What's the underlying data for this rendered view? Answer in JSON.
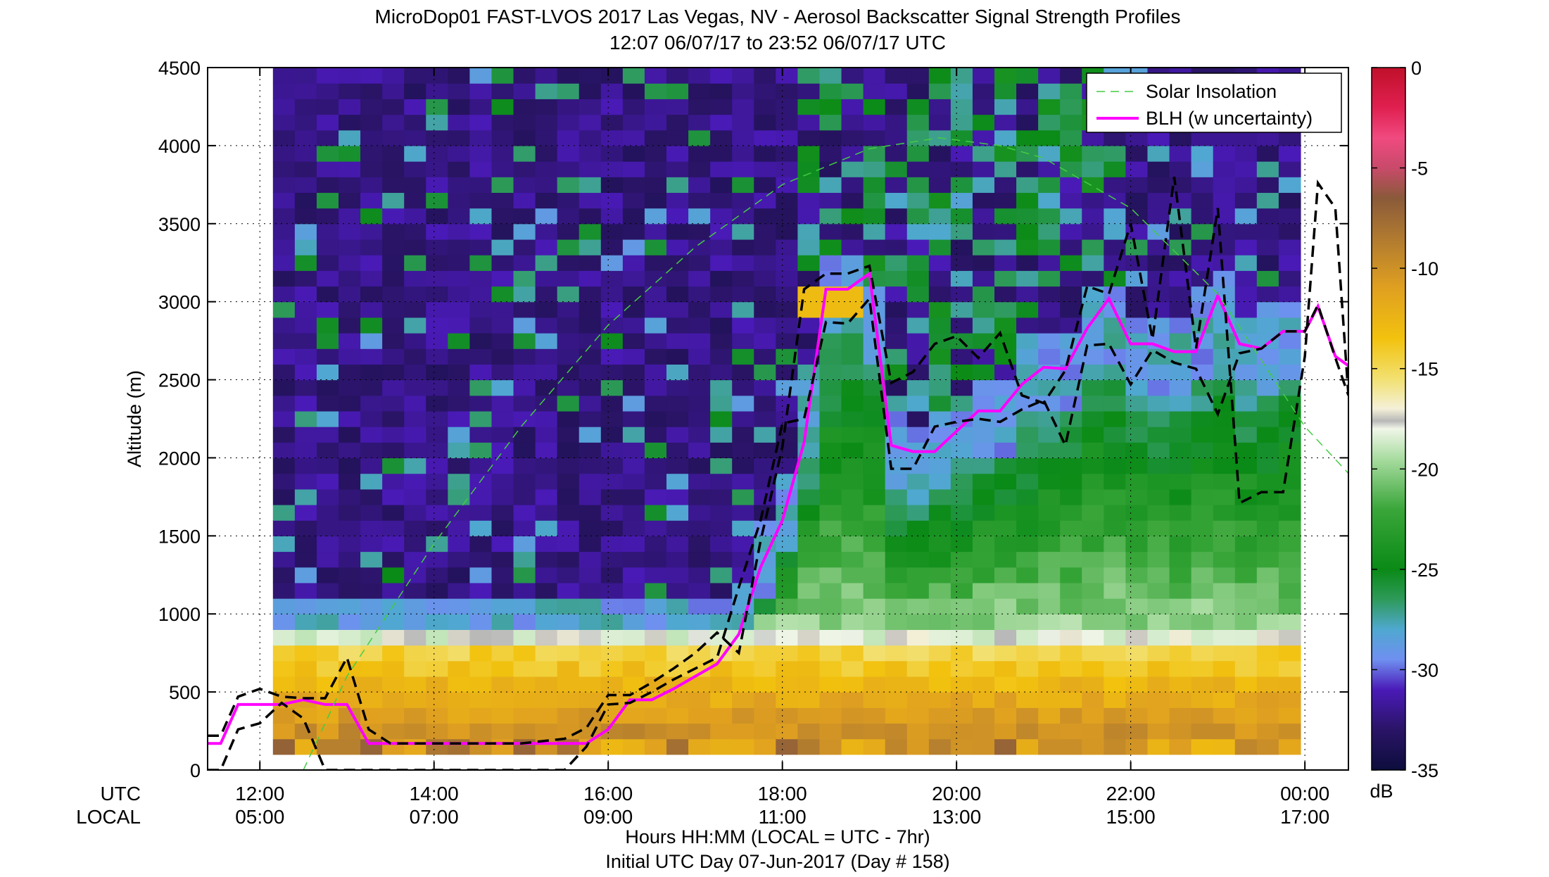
{
  "chart_data": {
    "type": "heatmap",
    "title_line1": "MicroDop01 FAST-LVOS 2017 Las Vegas, NV - Aerosol Backscatter Signal Strength Profiles",
    "title_line2": "12:07 06/07/17 to 23:52 06/07/17  UTC",
    "ylabel": "Altitude (m)",
    "xlabel_line1": "Hours HH:MM  (LOCAL = UTC - 7hr)",
    "xlabel_line2": "Initial UTC Day 07-Jun-2017 (Day # 158)",
    "row_label_utc": "UTC",
    "row_label_local": "LOCAL",
    "xlim_hours": [
      11.4,
      24.5
    ],
    "ylim": [
      0,
      4500
    ],
    "y_ticks": [
      "0",
      "500",
      "1000",
      "1500",
      "2000",
      "2500",
      "3000",
      "3500",
      "4000",
      "4500"
    ],
    "y_tick_values": [
      0,
      500,
      1000,
      1500,
      2000,
      2500,
      3000,
      3500,
      4000,
      4500
    ],
    "x_tick_values": [
      12,
      14,
      16,
      18,
      20,
      22,
      24
    ],
    "x_ticks_utc": [
      "12:00",
      "14:00",
      "16:00",
      "18:00",
      "20:00",
      "22:00",
      "00:00"
    ],
    "x_ticks_local": [
      "05:00",
      "07:00",
      "09:00",
      "11:00",
      "13:00",
      "15:00",
      "17:00"
    ],
    "grid": true,
    "colorbar": {
      "range": [
        -35,
        0
      ],
      "ticks": [
        "0",
        "-5",
        "-10",
        "-15",
        "-20",
        "-25",
        "-30",
        "-35"
      ],
      "tick_values": [
        0,
        -5,
        -10,
        -15,
        -20,
        -25,
        -30,
        -35
      ],
      "unit": "dB",
      "stops": [
        [
          -35,
          "#0d0d3d"
        ],
        [
          -33,
          "#2a1466"
        ],
        [
          -31,
          "#4a1ab8"
        ],
        [
          -29.5,
          "#6f8ff0"
        ],
        [
          -28,
          "#4fa8d0"
        ],
        [
          -26.5,
          "#2e9a5a"
        ],
        [
          -25,
          "#0a8a16"
        ],
        [
          -22,
          "#3aa63a"
        ],
        [
          -19.5,
          "#a8dca0"
        ],
        [
          -18,
          "#f0f6e8"
        ],
        [
          -17.6,
          "#b8b8b8"
        ],
        [
          -17,
          "#f4f0d8"
        ],
        [
          -15.5,
          "#f2e070"
        ],
        [
          -13.5,
          "#f2c20e"
        ],
        [
          -11,
          "#e0a020"
        ],
        [
          -8.5,
          "#b07a30"
        ],
        [
          -6.5,
          "#8a5a3a"
        ],
        [
          -5,
          "#c84a6a"
        ],
        [
          -3.5,
          "#f04a80"
        ],
        [
          -2,
          "#e02050"
        ],
        [
          0,
          "#c0102a"
        ]
      ]
    },
    "heatmap_x_range_hours": [
      12.15,
      23.95
    ],
    "heatmap_y_range": [
      100,
      4500
    ],
    "legend": {
      "position": "top-right",
      "entries": [
        {
          "label": "Solar Insolation",
          "color": "#44cc44",
          "style": "dashed"
        },
        {
          "label": "BLH (w uncertainty)",
          "color": "#ff00ff",
          "style": "solid"
        }
      ]
    },
    "series": [
      {
        "name": "BLH (w uncertainty)",
        "color": "#ff00ff",
        "x": [
          11.4,
          11.55,
          11.75,
          12.0,
          12.25,
          12.5,
          12.75,
          13.0,
          13.25,
          13.5,
          14.0,
          15.0,
          15.5,
          15.75,
          16.0,
          16.25,
          16.5,
          16.75,
          17.0,
          17.25,
          17.5,
          17.75,
          18.0,
          18.25,
          18.5,
          18.75,
          19.0,
          19.25,
          19.5,
          19.75,
          20.0,
          20.25,
          20.5,
          20.75,
          21.0,
          21.25,
          21.5,
          21.75,
          22.0,
          22.25,
          22.5,
          22.75,
          23.0,
          23.25,
          23.5,
          23.75,
          24.0,
          24.15,
          24.35,
          24.5
        ],
        "y": [
          170,
          170,
          420,
          420,
          420,
          450,
          420,
          420,
          170,
          170,
          170,
          170,
          170,
          170,
          260,
          450,
          450,
          520,
          600,
          680,
          870,
          1300,
          1600,
          2100,
          3080,
          3080,
          3180,
          2080,
          2040,
          2040,
          2170,
          2300,
          2300,
          2470,
          2580,
          2570,
          2830,
          3020,
          2730,
          2730,
          2680,
          2680,
          3040,
          2730,
          2700,
          2810,
          2810,
          2970,
          2650,
          2590
        ]
      },
      {
        "name": "",
        "color": "#000000",
        "x": [
          11.4,
          11.55,
          11.75,
          12.0,
          12.25,
          12.5,
          12.75,
          13.0,
          13.25,
          13.5,
          14.0,
          15.0,
          15.5,
          15.75,
          16.0,
          16.25,
          16.5,
          16.75,
          17.0,
          17.25,
          17.5,
          17.75,
          18.0,
          18.25,
          18.5,
          18.75,
          19.0,
          19.25,
          19.5,
          19.75,
          20.0,
          20.25,
          20.5,
          20.75,
          21.0,
          21.25,
          21.5,
          21.75,
          22.0,
          22.25,
          22.5,
          22.75,
          23.0,
          23.25,
          23.5,
          23.75,
          24.0,
          24.15,
          24.35,
          24.5
        ],
        "y": [
          220,
          220,
          470,
          520,
          470,
          460,
          460,
          720,
          260,
          170,
          170,
          170,
          200,
          270,
          480,
          480,
          560,
          650,
          750,
          880,
          750,
          1470,
          2070,
          3080,
          3180,
          3180,
          3230,
          2480,
          2550,
          2730,
          2780,
          2640,
          2800,
          2400,
          2350,
          2560,
          3100,
          3050,
          3500,
          2760,
          3800,
          2700,
          3600,
          1710,
          1780,
          1780,
          2650,
          3760,
          3600,
          2400
        ]
      },
      {
        "name": "",
        "color": "#000000",
        "x": [
          11.4,
          11.55,
          11.75,
          12.0,
          12.25,
          12.5,
          12.75,
          13.0,
          13.25,
          13.5,
          14.0,
          15.0,
          15.5,
          15.75,
          16.0,
          16.25,
          16.5,
          16.75,
          17.0,
          17.25,
          17.5,
          17.75,
          18.0,
          18.25,
          18.5,
          18.75,
          19.0,
          19.25,
          19.5,
          19.75,
          20.0,
          20.25,
          20.5,
          20.75,
          21.0,
          21.25,
          21.5,
          21.75,
          22.0,
          22.25,
          22.5,
          22.75,
          23.0,
          23.25,
          23.5,
          23.75,
          24.0,
          24.15,
          24.35,
          24.5
        ],
        "y": [
          0,
          0,
          260,
          300,
          430,
          330,
          0,
          0,
          0,
          0,
          0,
          0,
          0,
          150,
          420,
          430,
          500,
          580,
          650,
          720,
          1170,
          1600,
          2220,
          2250,
          2870,
          2860,
          3020,
          1930,
          1930,
          2200,
          2230,
          2250,
          2230,
          2310,
          2370,
          2080,
          2720,
          2730,
          2470,
          2690,
          2610,
          2570,
          2280,
          2670,
          2700,
          2810,
          2810,
          2980,
          2640,
          2400
        ]
      },
      {
        "name": "Solar Insolation",
        "color": "#44cc44",
        "x": [
          12.5,
          13.0,
          14.0,
          15.0,
          16.0,
          17.0,
          18.0,
          19.0,
          19.8,
          20.5,
          21.0,
          22.0,
          23.0,
          24.0,
          24.5
        ],
        "y": [
          0,
          600,
          1450,
          2200,
          2850,
          3350,
          3750,
          3980,
          4050,
          4000,
          3920,
          3600,
          3050,
          2200,
          1900
        ]
      }
    ]
  }
}
